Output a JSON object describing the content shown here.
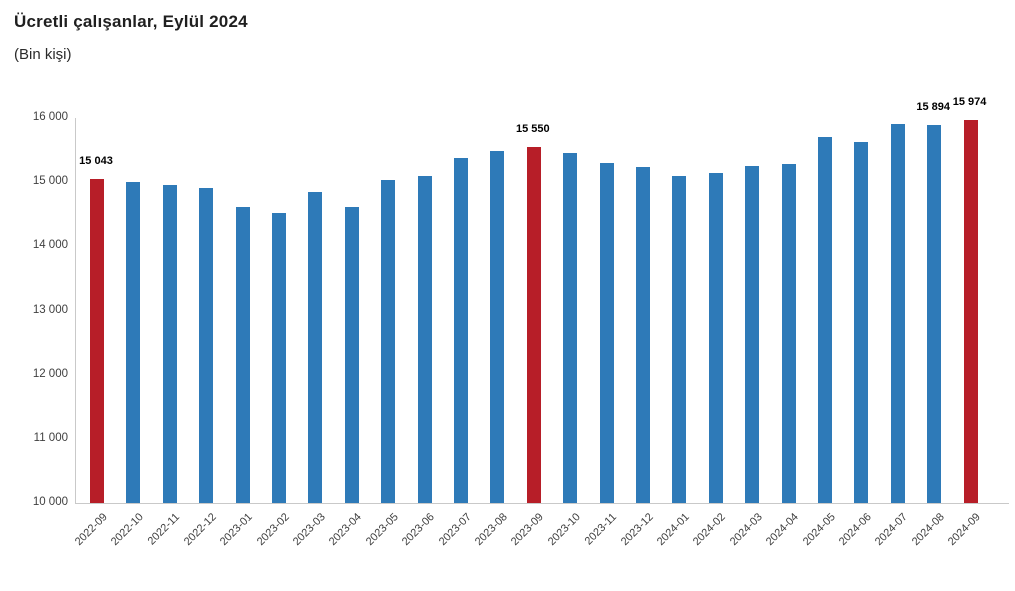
{
  "header": {
    "title": "Ücretli çalışanlar, Eylül 2024",
    "subtitle": "(Bin kişi)"
  },
  "chart_data": {
    "type": "bar",
    "title": "Ücretli çalışanlar, Eylül 2024",
    "subtitle": "(Bin kişi)",
    "xlabel": "",
    "ylabel": "",
    "categories": [
      "2022-09",
      "2022-10",
      "2022-11",
      "2022-12",
      "2023-01",
      "2023-02",
      "2023-03",
      "2023-04",
      "2023-05",
      "2023-06",
      "2023-07",
      "2023-08",
      "2023-09",
      "2023-10",
      "2023-11",
      "2023-12",
      "2024-01",
      "2024-02",
      "2024-03",
      "2024-04",
      "2024-05",
      "2024-06",
      "2024-07",
      "2024-08",
      "2024-09"
    ],
    "values": [
      15043,
      15010,
      14960,
      14910,
      14610,
      14520,
      14840,
      14610,
      15030,
      15090,
      15370,
      15480,
      15550,
      15450,
      15300,
      15240,
      15090,
      15140,
      15250,
      15280,
      15700,
      15620,
      15910,
      15894,
      15974
    ],
    "highlight_indices": [
      0,
      12,
      24
    ],
    "data_labels": {
      "0": "15 043",
      "12": "15 550",
      "23": "15 894",
      "24": "15 974"
    },
    "ylim": [
      10000,
      16000
    ],
    "ytick_step": 1000,
    "ytick_labels": [
      "10 000",
      "11 000",
      "12 000",
      "13 000",
      "14 000",
      "15 000",
      "16 000"
    ],
    "grid": false,
    "legend": false,
    "colors": {
      "bar": "#2e7ab8",
      "highlight": "#b71e28",
      "axis": "#c9c9c9",
      "tick_text": "#3f3f3f",
      "title_text": "#1f1f1f",
      "data_label_text": "#000000"
    }
  }
}
